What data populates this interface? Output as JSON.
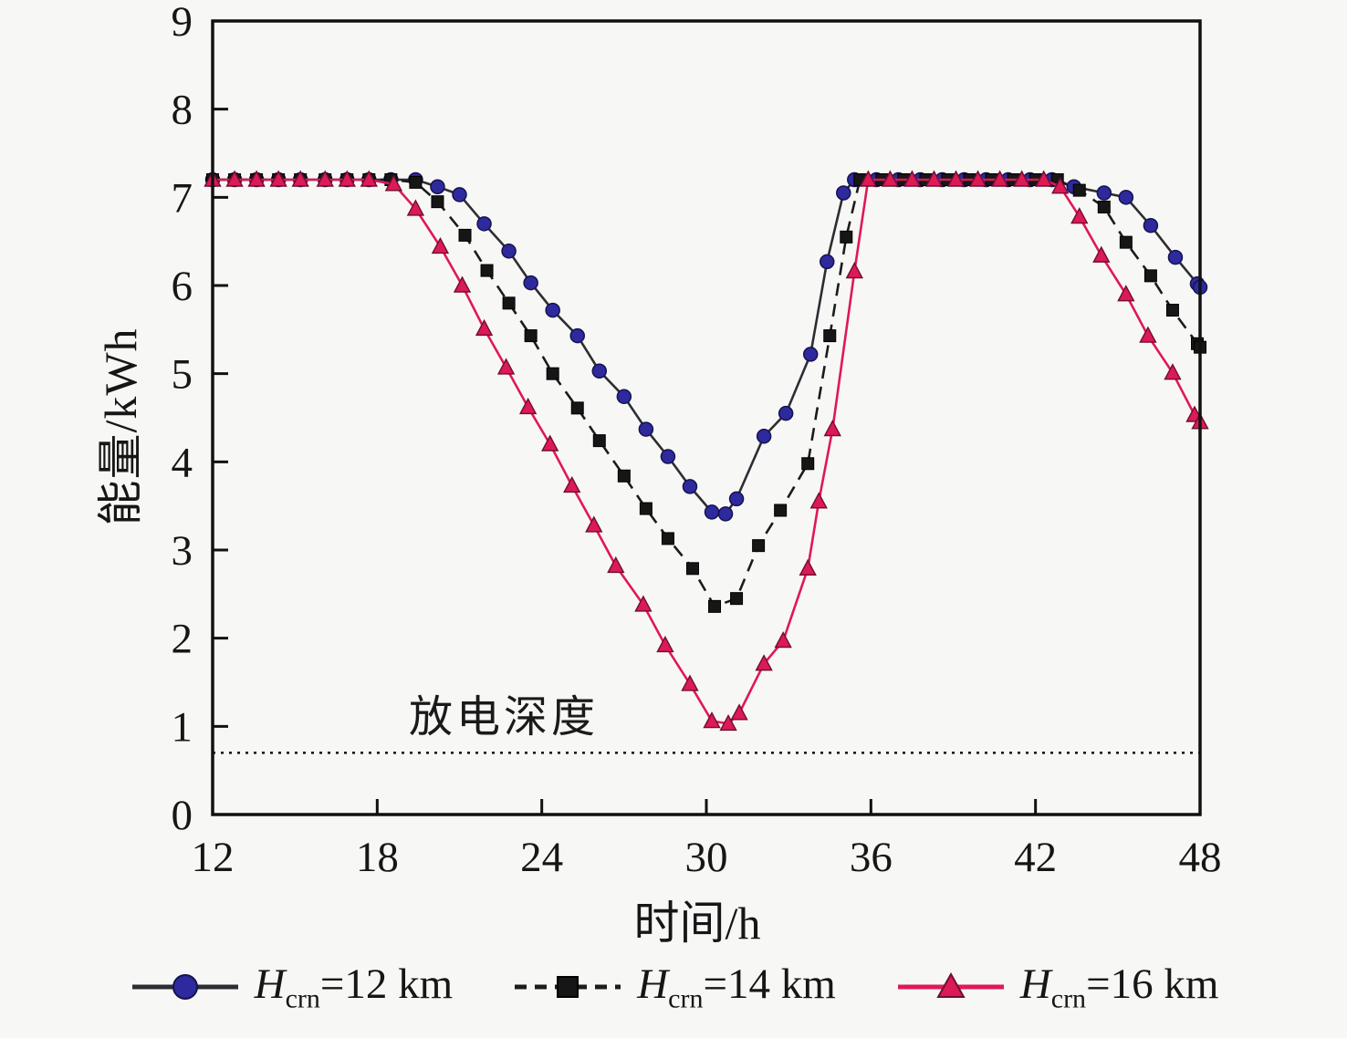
{
  "figure": {
    "background_color": "#f7f7f5",
    "frame_color": "#111111",
    "annotation": {
      "text": "放电深度"
    }
  },
  "chart_data": {
    "type": "line",
    "title": "",
    "xlabel": "时间/h",
    "ylabel": "能量/kWh",
    "xlim": [
      12,
      48
    ],
    "ylim": [
      0,
      9
    ],
    "x_ticks": [
      12,
      18,
      24,
      30,
      36,
      42,
      48
    ],
    "y_ticks": [
      0,
      1,
      2,
      3,
      4,
      5,
      6,
      7,
      8,
      9
    ],
    "grid": false,
    "legend_position": "bottom",
    "reference_line": {
      "label": "放电深度",
      "value": 0.7,
      "style": "dotted",
      "color": "#1a1a1a"
    },
    "series": [
      {
        "name": "Hcrn=12 km",
        "legend": {
          "var": "H",
          "sub": "crn",
          "rest": "=12 km"
        },
        "marker": "circle",
        "marker_color": "#2e2a9d",
        "marker_edge": "#15134f",
        "line_color": "#2d2d33",
        "line_style": "solid",
        "points": [
          [
            12,
            7.2
          ],
          [
            12.8,
            7.2
          ],
          [
            13.6,
            7.2
          ],
          [
            14.4,
            7.2
          ],
          [
            15.2,
            7.2
          ],
          [
            16.1,
            7.2
          ],
          [
            16.9,
            7.2
          ],
          [
            17.7,
            7.2
          ],
          [
            18.5,
            7.2
          ],
          [
            19.4,
            7.2
          ],
          [
            20.2,
            7.12
          ],
          [
            21,
            7.03
          ],
          [
            21.9,
            6.7
          ],
          [
            22.8,
            6.39
          ],
          [
            23.6,
            6.03
          ],
          [
            24.4,
            5.72
          ],
          [
            25.3,
            5.43
          ],
          [
            26.1,
            5.03
          ],
          [
            27,
            4.74
          ],
          [
            27.8,
            4.37
          ],
          [
            28.6,
            4.06
          ],
          [
            29.4,
            3.72
          ],
          [
            30.2,
            3.43
          ],
          [
            30.7,
            3.41
          ],
          [
            31.1,
            3.58
          ],
          [
            32.1,
            4.29
          ],
          [
            32.9,
            4.55
          ],
          [
            33.8,
            5.22
          ],
          [
            34.4,
            6.27
          ],
          [
            35,
            7.05
          ],
          [
            35.4,
            7.2
          ],
          [
            36.2,
            7.2
          ],
          [
            37,
            7.2
          ],
          [
            37.8,
            7.2
          ],
          [
            38.6,
            7.2
          ],
          [
            39.4,
            7.2
          ],
          [
            40.2,
            7.2
          ],
          [
            41,
            7.2
          ],
          [
            41.8,
            7.2
          ],
          [
            42.6,
            7.2
          ],
          [
            43.4,
            7.12
          ],
          [
            44.5,
            7.05
          ],
          [
            45.3,
            7.0
          ],
          [
            46.2,
            6.68
          ],
          [
            47.1,
            6.32
          ],
          [
            47.9,
            6.02
          ],
          [
            48,
            5.98
          ]
        ]
      },
      {
        "name": "Hcrn=14 km",
        "legend": {
          "var": "H",
          "sub": "crn",
          "rest": "=14 km"
        },
        "marker": "square",
        "marker_color": "#161616",
        "marker_edge": "#000000",
        "line_color": "#1c1c1c",
        "line_style": "dashed",
        "points": [
          [
            12,
            7.2
          ],
          [
            12.8,
            7.2
          ],
          [
            13.6,
            7.2
          ],
          [
            14.4,
            7.2
          ],
          [
            15.2,
            7.2
          ],
          [
            16.1,
            7.2
          ],
          [
            16.9,
            7.2
          ],
          [
            17.7,
            7.2
          ],
          [
            18.5,
            7.2
          ],
          [
            19.4,
            7.17
          ],
          [
            20.2,
            6.95
          ],
          [
            21.2,
            6.57
          ],
          [
            22,
            6.17
          ],
          [
            22.8,
            5.8
          ],
          [
            23.6,
            5.43
          ],
          [
            24.4,
            5.0
          ],
          [
            25.3,
            4.61
          ],
          [
            26.1,
            4.24
          ],
          [
            27,
            3.84
          ],
          [
            27.8,
            3.47
          ],
          [
            28.6,
            3.13
          ],
          [
            29.5,
            2.79
          ],
          [
            30.3,
            2.36
          ],
          [
            31.1,
            2.45
          ],
          [
            31.9,
            3.05
          ],
          [
            32.7,
            3.45
          ],
          [
            33.7,
            3.98
          ],
          [
            34.5,
            5.43
          ],
          [
            35.1,
            6.55
          ],
          [
            35.6,
            7.2
          ],
          [
            36.4,
            7.2
          ],
          [
            37.2,
            7.2
          ],
          [
            38,
            7.2
          ],
          [
            38.8,
            7.2
          ],
          [
            39.6,
            7.2
          ],
          [
            40.4,
            7.2
          ],
          [
            41.2,
            7.2
          ],
          [
            42,
            7.2
          ],
          [
            42.8,
            7.2
          ],
          [
            43.6,
            7.08
          ],
          [
            44.5,
            6.89
          ],
          [
            45.3,
            6.49
          ],
          [
            46.2,
            6.11
          ],
          [
            47,
            5.72
          ],
          [
            47.9,
            5.34
          ],
          [
            48,
            5.3
          ]
        ]
      },
      {
        "name": "Hcrn=16 km",
        "legend": {
          "var": "H",
          "sub": "crn",
          "rest": "=16 km"
        },
        "marker": "triangle",
        "marker_color": "#dc1a55",
        "marker_edge": "#6e0e33",
        "line_color": "#e0175a",
        "line_style": "solid",
        "points": [
          [
            12,
            7.2
          ],
          [
            12.8,
            7.2
          ],
          [
            13.6,
            7.2
          ],
          [
            14.4,
            7.2
          ],
          [
            15.2,
            7.2
          ],
          [
            16.1,
            7.2
          ],
          [
            16.9,
            7.2
          ],
          [
            17.7,
            7.2
          ],
          [
            18.6,
            7.15
          ],
          [
            19.4,
            6.87
          ],
          [
            20.3,
            6.44
          ],
          [
            21.1,
            6.0
          ],
          [
            21.9,
            5.51
          ],
          [
            22.7,
            5.07
          ],
          [
            23.5,
            4.62
          ],
          [
            24.3,
            4.2
          ],
          [
            25.1,
            3.73
          ],
          [
            25.9,
            3.28
          ],
          [
            26.7,
            2.82
          ],
          [
            27.7,
            2.38
          ],
          [
            28.5,
            1.92
          ],
          [
            29.4,
            1.48
          ],
          [
            30.2,
            1.06
          ],
          [
            30.8,
            1.03
          ],
          [
            31.2,
            1.15
          ],
          [
            32.1,
            1.71
          ],
          [
            32.8,
            1.97
          ],
          [
            33.7,
            2.79
          ],
          [
            34.1,
            3.55
          ],
          [
            34.6,
            4.37
          ],
          [
            35.4,
            6.16
          ],
          [
            35.9,
            7.2
          ],
          [
            36.7,
            7.2
          ],
          [
            37.5,
            7.2
          ],
          [
            38.3,
            7.2
          ],
          [
            39.1,
            7.2
          ],
          [
            39.9,
            7.2
          ],
          [
            40.7,
            7.2
          ],
          [
            41.5,
            7.2
          ],
          [
            42.3,
            7.2
          ],
          [
            42.9,
            7.12
          ],
          [
            43.6,
            6.78
          ],
          [
            44.4,
            6.34
          ],
          [
            45.3,
            5.9
          ],
          [
            46.1,
            5.43
          ],
          [
            47,
            5.01
          ],
          [
            47.8,
            4.53
          ],
          [
            48,
            4.45
          ]
        ]
      }
    ]
  }
}
